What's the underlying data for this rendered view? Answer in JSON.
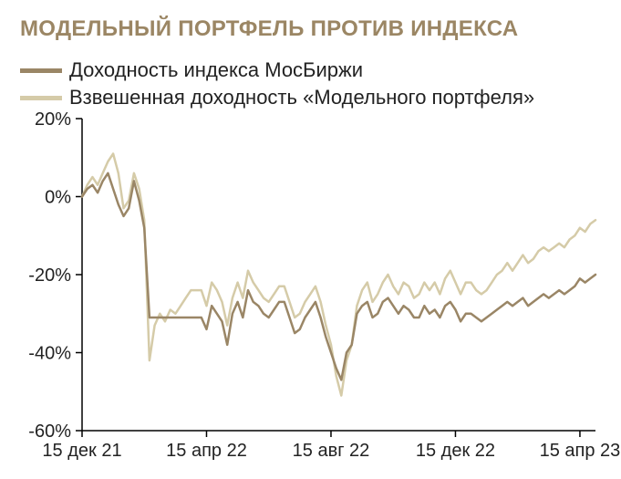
{
  "title": "МОДЕЛЬНЫЙ ПОРТФЕЛЬ ПРОТИВ ИНДЕКСА",
  "legend": {
    "series_a": "Доходность индекса МосБиржи",
    "series_b": "Взвешенная доходность «Модельного портфеля»"
  },
  "chart": {
    "type": "line",
    "background_color": "#ffffff",
    "axis_color": "#000000",
    "text_color": "#222222",
    "title_color": "#9b8664",
    "title_fontsize": 24,
    "label_fontsize": 20,
    "ylim": [
      -60,
      20
    ],
    "ytick_step": 20,
    "y_ticks": [
      20,
      0,
      -20,
      -40,
      -60
    ],
    "y_tick_labels": [
      "20%",
      "0%",
      "-20%",
      "-40%",
      "-60%"
    ],
    "x_ticks": [
      0,
      24,
      48,
      72,
      96
    ],
    "x_tick_labels": [
      "15 дек 21",
      "15 апр 22",
      "15 авг 22",
      "15 дек 22",
      "15 апр 23"
    ],
    "x_count": 100,
    "line_width": 2.5,
    "series": [
      {
        "name": "series_a",
        "color": "#9a8666",
        "values": [
          0,
          2,
          3,
          1,
          4,
          6,
          2,
          -2,
          -5,
          -3,
          4,
          -1,
          -8,
          -31,
          -31,
          -31,
          -31,
          -31,
          -31,
          -31,
          -31,
          -31,
          -31,
          -31,
          -34,
          -28,
          -30,
          -32,
          -38,
          -30,
          -27,
          -31,
          -24,
          -27,
          -28,
          -30,
          -31,
          -29,
          -27,
          -27,
          -31,
          -35,
          -34,
          -31,
          -29,
          -27,
          -31,
          -36,
          -40,
          -44,
          -47,
          -40,
          -38,
          -30,
          -28,
          -27,
          -31,
          -30,
          -27,
          -26,
          -28,
          -30,
          -28,
          -29,
          -31,
          -31,
          -28,
          -30,
          -29,
          -31,
          -28,
          -27,
          -29,
          -32,
          -30,
          -30,
          -31,
          -32,
          -31,
          -30,
          -29,
          -28,
          -27,
          -28,
          -27,
          -26,
          -28,
          -27,
          -26,
          -25,
          -26,
          -25,
          -24,
          -25,
          -24,
          -23,
          -21,
          -22,
          -21,
          -20
        ]
      },
      {
        "name": "series_b",
        "color": "#d5cba8",
        "values": [
          0,
          3,
          5,
          3,
          6,
          9,
          11,
          6,
          -3,
          -1,
          6,
          2,
          -6,
          -42,
          -33,
          -30,
          -32,
          -29,
          -30,
          -28,
          -26,
          -24,
          -24,
          -24,
          -28,
          -22,
          -24,
          -27,
          -33,
          -26,
          -22,
          -26,
          -19,
          -22,
          -24,
          -26,
          -27,
          -25,
          -23,
          -23,
          -27,
          -31,
          -30,
          -27,
          -25,
          -23,
          -27,
          -33,
          -38,
          -46,
          -51,
          -42,
          -38,
          -28,
          -24,
          -22,
          -27,
          -25,
          -22,
          -20,
          -23,
          -25,
          -22,
          -23,
          -26,
          -25,
          -22,
          -24,
          -22,
          -25,
          -21,
          -19,
          -22,
          -25,
          -22,
          -22,
          -24,
          -25,
          -24,
          -22,
          -20,
          -19,
          -17,
          -19,
          -17,
          -15,
          -17,
          -16,
          -14,
          -13,
          -14,
          -13,
          -12,
          -13,
          -11,
          -10,
          -8,
          -9,
          -7,
          -6
        ]
      }
    ]
  }
}
